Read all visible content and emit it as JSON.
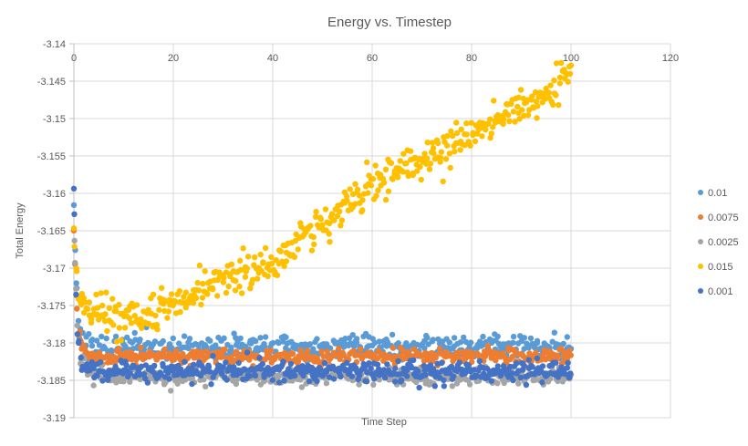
{
  "chart_data": {
    "type": "scatter",
    "title": "Energy vs. Timestep",
    "xlabel": "Time Step",
    "ylabel": "Total Energy",
    "xlim": [
      0,
      120
    ],
    "ylim": [
      -3.19,
      -3.14
    ],
    "x_ticks": [
      "0",
      "20",
      "40",
      "60",
      "80",
      "100",
      "120"
    ],
    "y_ticks": [
      "-3.14",
      "-3.145",
      "-3.15",
      "-3.155",
      "-3.16",
      "-3.165",
      "-3.17",
      "-3.175",
      "-3.18",
      "-3.185",
      "-3.19"
    ],
    "grid": true,
    "legend_position": "right",
    "marker": "circle",
    "series": [
      {
        "name": "0.01",
        "color": "#5B9BD5",
        "n": 420,
        "x_range": [
          0,
          100
        ],
        "noise_sd": 0.0008,
        "seed": 101,
        "keypoints": [
          [
            0,
            -3.161
          ],
          [
            0.5,
            -3.172
          ],
          [
            1,
            -3.1775
          ],
          [
            2,
            -3.18
          ],
          [
            4,
            -3.1805
          ],
          [
            100,
            -3.1805
          ]
        ]
      },
      {
        "name": "0.0075",
        "color": "#ED7D31",
        "n": 420,
        "x_range": [
          0,
          100
        ],
        "noise_sd": 0.0005,
        "seed": 202,
        "keypoints": [
          [
            0,
            -3.165
          ],
          [
            0.5,
            -3.174
          ],
          [
            1,
            -3.179
          ],
          [
            2,
            -3.1812
          ],
          [
            4,
            -3.1818
          ],
          [
            100,
            -3.1818
          ]
        ]
      },
      {
        "name": "0.0025",
        "color": "#A5A5A5",
        "n": 420,
        "x_range": [
          0,
          100
        ],
        "noise_sd": 0.0006,
        "seed": 303,
        "keypoints": [
          [
            0,
            -3.163
          ],
          [
            0.5,
            -3.175
          ],
          [
            1,
            -3.18
          ],
          [
            2,
            -3.1834
          ],
          [
            4,
            -3.1844
          ],
          [
            100,
            -3.1844
          ]
        ]
      },
      {
        "name": "0.015",
        "color": "#FFC000",
        "n": 470,
        "x_range": [
          0,
          100
        ],
        "noise_sd": 0.0012,
        "seed": 404,
        "keypoints": [
          [
            0,
            -3.165
          ],
          [
            0.6,
            -3.171
          ],
          [
            1.5,
            -3.1745
          ],
          [
            3,
            -3.1757
          ],
          [
            6,
            -3.176
          ],
          [
            10,
            -3.1763
          ],
          [
            14,
            -3.1768
          ],
          [
            17,
            -3.176
          ],
          [
            20,
            -3.1745
          ],
          [
            24,
            -3.1737
          ],
          [
            28,
            -3.1722
          ],
          [
            32,
            -3.171
          ],
          [
            36,
            -3.1702
          ],
          [
            40,
            -3.1695
          ],
          [
            44,
            -3.1668
          ],
          [
            48,
            -3.165
          ],
          [
            52,
            -3.1635
          ],
          [
            56,
            -3.161
          ],
          [
            60,
            -3.1592
          ],
          [
            64,
            -3.1572
          ],
          [
            68,
            -3.156
          ],
          [
            72,
            -3.155
          ],
          [
            76,
            -3.1538
          ],
          [
            80,
            -3.152
          ],
          [
            84,
            -3.1505
          ],
          [
            88,
            -3.1496
          ],
          [
            92,
            -3.1482
          ],
          [
            96,
            -3.1463
          ],
          [
            98,
            -3.145
          ],
          [
            100,
            -3.1428
          ]
        ]
      },
      {
        "name": "0.001",
        "color": "#4472C4",
        "n": 460,
        "x_range": [
          0,
          100
        ],
        "noise_sd": 0.0007,
        "seed": 505,
        "keypoints": [
          [
            0,
            -3.159
          ],
          [
            0.25,
            -3.168
          ],
          [
            0.5,
            -3.174
          ],
          [
            0.75,
            -3.178
          ],
          [
            1,
            -3.1805
          ],
          [
            1.5,
            -3.1828
          ],
          [
            2.5,
            -3.1836
          ],
          [
            4,
            -3.1838
          ],
          [
            100,
            -3.1838
          ]
        ]
      }
    ]
  },
  "legend": {
    "items": [
      {
        "label": "0.01",
        "color": "#5B9BD5"
      },
      {
        "label": "0.0075",
        "color": "#ED7D31"
      },
      {
        "label": "0.0025",
        "color": "#A5A5A5"
      },
      {
        "label": "0.015",
        "color": "#FFC000"
      },
      {
        "label": "0.001",
        "color": "#4472C4"
      }
    ]
  },
  "colors": {
    "text": "#595959",
    "gridline": "#d9d9d9",
    "axis": "#bfbfbf",
    "background": "#ffffff"
  }
}
